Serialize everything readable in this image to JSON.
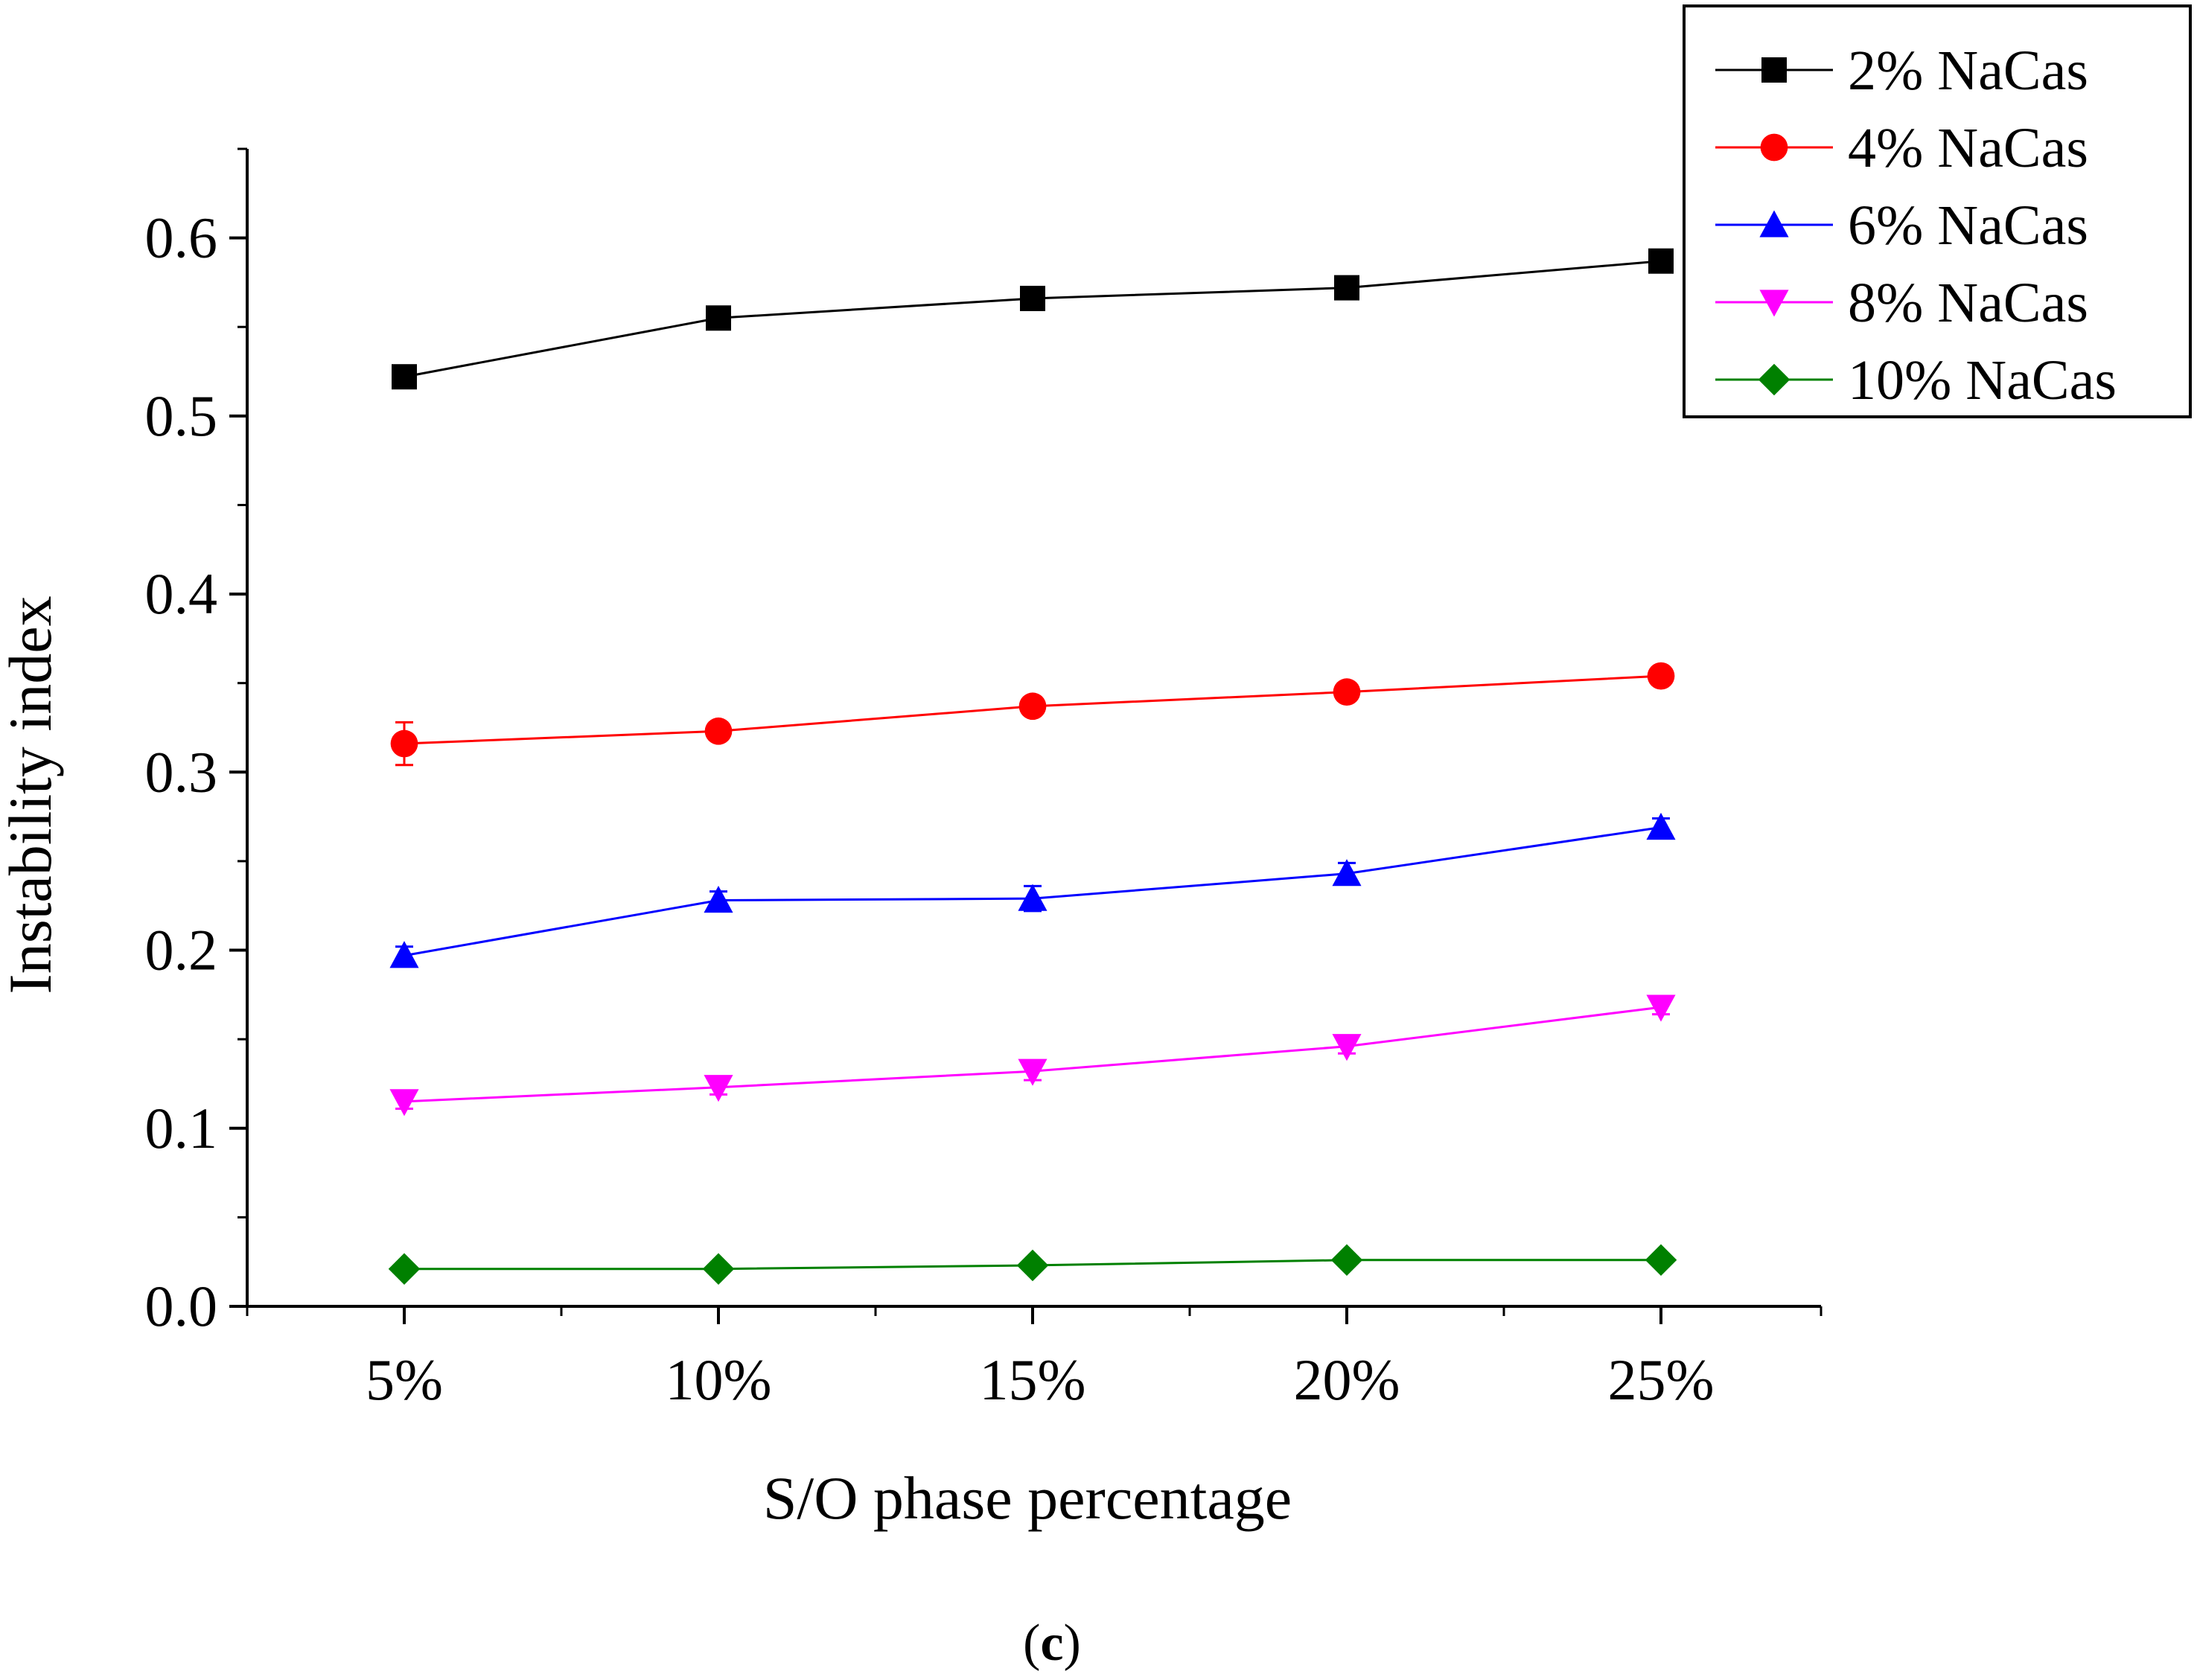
{
  "chart_data": {
    "type": "line",
    "title": "",
    "xlabel": "S/O phase percentage",
    "ylabel": "Instability index",
    "categories": [
      "5%",
      "10%",
      "15%",
      "20%",
      "25%"
    ],
    "ylim": [
      0.0,
      0.65
    ],
    "yticks": [
      "0.0",
      "0.1",
      "0.2",
      "0.3",
      "0.4",
      "0.5",
      "0.6"
    ],
    "grid": false,
    "legend_position": "top-right",
    "series": [
      {
        "name": "2% NaCas",
        "color": "#000000",
        "marker": "square",
        "values": [
          0.522,
          0.555,
          0.566,
          0.572,
          0.587
        ],
        "errors": [
          0.004,
          0.004,
          0.003,
          0.005,
          0.004
        ]
      },
      {
        "name": "4% NaCas",
        "color": "#ff0000",
        "marker": "circle",
        "values": [
          0.316,
          0.323,
          0.337,
          0.345,
          0.354
        ],
        "errors": [
          0.012,
          0.004,
          0.004,
          0.004,
          0.005
        ]
      },
      {
        "name": "6% NaCas",
        "color": "#0000ff",
        "marker": "triangle-up",
        "values": [
          0.197,
          0.228,
          0.229,
          0.243,
          0.269
        ],
        "errors": [
          0.005,
          0.005,
          0.007,
          0.006,
          0.005
        ]
      },
      {
        "name": "8% NaCas",
        "color": "#ff00ff",
        "marker": "triangle-down",
        "values": [
          0.115,
          0.123,
          0.132,
          0.146,
          0.168
        ],
        "errors": [
          0.004,
          0.004,
          0.005,
          0.004,
          0.004
        ]
      },
      {
        "name": "10% NaCas",
        "color": "#008000",
        "marker": "diamond",
        "values": [
          0.021,
          0.021,
          0.023,
          0.026,
          0.026
        ],
        "errors": [
          0.002,
          0.002,
          0.002,
          0.002,
          0.002
        ]
      }
    ]
  },
  "caption": {
    "open": "(",
    "letter": "c",
    "close": ")"
  }
}
